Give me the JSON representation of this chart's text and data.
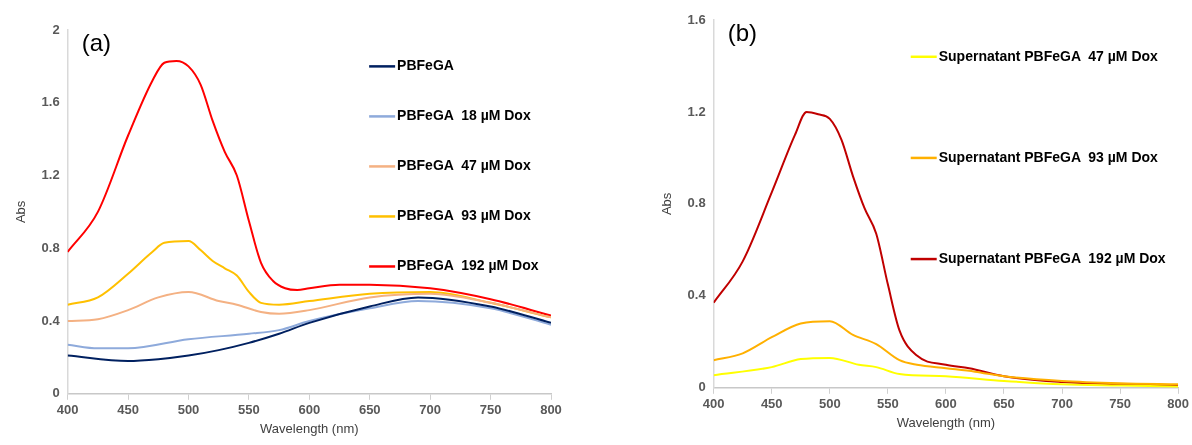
{
  "chart_data": [
    {
      "type": "line",
      "xlabel": "Wavelength (nm)",
      "ylabel": "Abs",
      "annotations": [
        "(a)"
      ],
      "xlim": [
        400,
        800
      ],
      "xticks": [
        400,
        450,
        500,
        550,
        600,
        650,
        700,
        750,
        800
      ],
      "ylim": [
        0,
        2
      ],
      "yticks": [
        0,
        0.4,
        0.8,
        1.2,
        1.6,
        2
      ],
      "grid": false,
      "legend": "right",
      "marker": "none",
      "line_style": "solid",
      "series": [
        {
          "name": "PBFeGA",
          "color": "#002060",
          "x": [
            400,
            450,
            475,
            500,
            525,
            550,
            575,
            600,
            650,
            690,
            750,
            800
          ],
          "values": [
            0.21,
            0.18,
            0.19,
            0.21,
            0.24,
            0.28,
            0.33,
            0.39,
            0.48,
            0.53,
            0.48,
            0.39
          ]
        },
        {
          "name": "PBFeGA  18 µM Dox",
          "color": "#8eaadb",
          "x": [
            400,
            425,
            450,
            500,
            550,
            575,
            600,
            650,
            690,
            750,
            800
          ],
          "values": [
            0.27,
            0.25,
            0.25,
            0.3,
            0.33,
            0.35,
            0.4,
            0.47,
            0.51,
            0.47,
            0.38
          ]
        },
        {
          "name": "PBFeGA  47 µM Dox",
          "color": "#f4b183",
          "x": [
            400,
            425,
            450,
            475,
            500,
            525,
            540,
            560,
            575,
            600,
            650,
            700,
            750,
            800
          ],
          "values": [
            0.4,
            0.41,
            0.46,
            0.53,
            0.56,
            0.51,
            0.49,
            0.45,
            0.44,
            0.46,
            0.53,
            0.55,
            0.5,
            0.42
          ]
        },
        {
          "name": "PBFeGA  93 µM Dox",
          "color": "#ffc000",
          "x": [
            400,
            425,
            450,
            470,
            480,
            500,
            510,
            520,
            530,
            540,
            550,
            560,
            575,
            600,
            650,
            700,
            750,
            800
          ],
          "values": [
            0.49,
            0.53,
            0.66,
            0.78,
            0.83,
            0.84,
            0.79,
            0.73,
            0.69,
            0.65,
            0.56,
            0.5,
            0.49,
            0.51,
            0.55,
            0.56,
            0.5,
            0.42
          ]
        },
        {
          "name": "PBFeGA  192 µM Dox",
          "color": "#ff0000",
          "x": [
            400,
            425,
            450,
            470,
            480,
            490,
            500,
            510,
            520,
            530,
            540,
            550,
            560,
            570,
            580,
            590,
            600,
            625,
            650,
            700,
            750,
            800
          ],
          "values": [
            0.78,
            1.0,
            1.42,
            1.72,
            1.82,
            1.83,
            1.8,
            1.7,
            1.5,
            1.33,
            1.2,
            0.95,
            0.72,
            0.62,
            0.58,
            0.57,
            0.58,
            0.6,
            0.6,
            0.58,
            0.52,
            0.43
          ]
        }
      ]
    },
    {
      "type": "line",
      "xlabel": "Wavelength (nm)",
      "ylabel": "Abs",
      "annotations": [
        "(b)"
      ],
      "xlim": [
        400,
        800
      ],
      "xticks": [
        400,
        450,
        500,
        550,
        600,
        650,
        700,
        750,
        800
      ],
      "ylim": [
        0,
        1.6
      ],
      "yticks": [
        0,
        0.4,
        0.8,
        1.2,
        1.6
      ],
      "grid": false,
      "legend": "right",
      "marker": "none",
      "line_style": "solid",
      "series": [
        {
          "name": "Supernatant PBFeGA  47 µM Dox",
          "color": "#ffff00",
          "x": [
            400,
            450,
            475,
            500,
            525,
            540,
            560,
            600,
            650,
            700,
            750,
            800
          ],
          "values": [
            0.055,
            0.09,
            0.125,
            0.13,
            0.1,
            0.09,
            0.06,
            0.05,
            0.03,
            0.015,
            0.01,
            0.005
          ]
        },
        {
          "name": "Supernatant PBFeGA  93 µM Dox",
          "color": "#ffb000",
          "x": [
            400,
            425,
            450,
            475,
            500,
            520,
            540,
            560,
            575,
            600,
            625,
            650,
            700,
            750,
            800
          ],
          "values": [
            0.12,
            0.15,
            0.22,
            0.28,
            0.29,
            0.23,
            0.19,
            0.12,
            0.1,
            0.085,
            0.07,
            0.05,
            0.03,
            0.02,
            0.015
          ]
        },
        {
          "name": "Supernatant PBFeGA  192 µM Dox",
          "color": "#c00000",
          "x": [
            400,
            425,
            450,
            470,
            480,
            490,
            500,
            510,
            520,
            530,
            540,
            550,
            560,
            575,
            600,
            620,
            650,
            700,
            750,
            800
          ],
          "values": [
            0.37,
            0.55,
            0.85,
            1.1,
            1.2,
            1.19,
            1.17,
            1.08,
            0.92,
            0.78,
            0.67,
            0.45,
            0.25,
            0.14,
            0.1,
            0.085,
            0.05,
            0.025,
            0.015,
            0.01
          ]
        }
      ]
    }
  ]
}
